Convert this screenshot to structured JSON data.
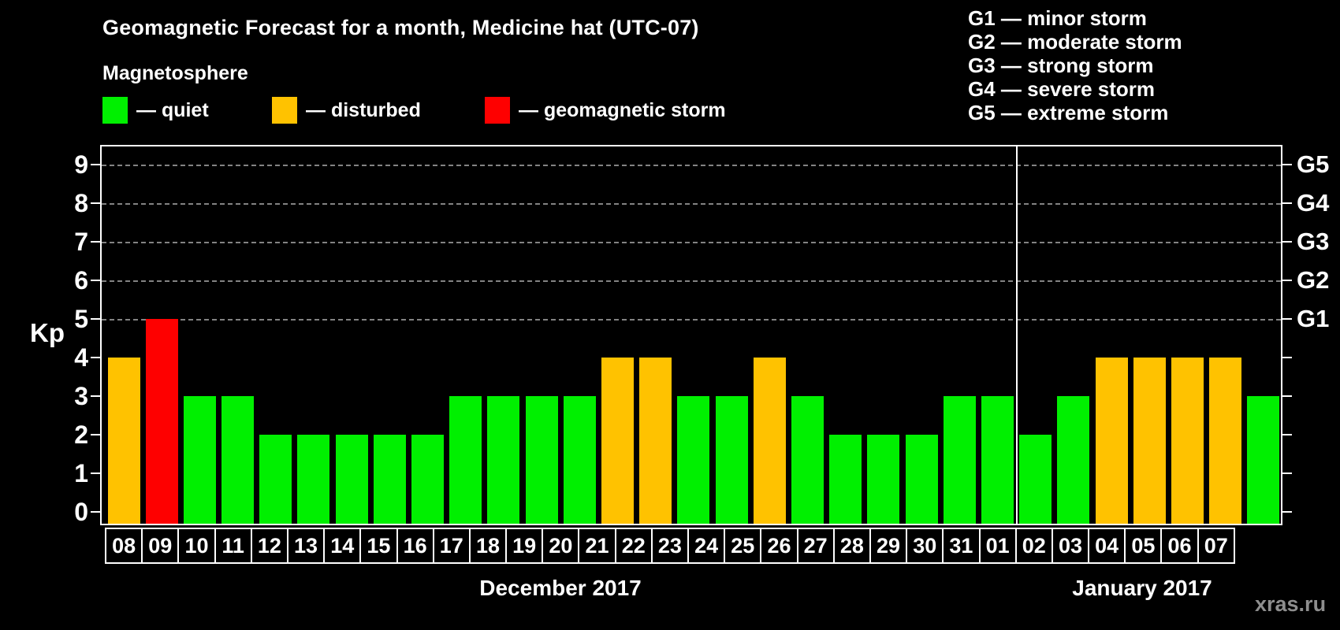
{
  "title": "Geomagnetic Forecast for a month, Medicine hat (UTC-07)",
  "legend": {
    "heading": "Magnetosphere",
    "items": [
      {
        "label": "— quiet",
        "status": "quiet"
      },
      {
        "label": "— disturbed",
        "status": "disturbed"
      },
      {
        "label": "— geomagnetic storm",
        "status": "storm"
      }
    ]
  },
  "storm_scale_lines": [
    "G1 — minor storm",
    "G2 — moderate storm",
    "G3 — strong storm",
    "G4 — severe storm",
    "G5 — extreme storm"
  ],
  "colors": {
    "quiet": "#00F000",
    "disturbed": "#FFC200",
    "storm": "#FE0000",
    "axis": "#FFFFFF",
    "grid": "#9A9A9A",
    "background": "#000000",
    "watermark_text": "#8E8E8E"
  },
  "axes": {
    "y_label": "Kp"
  },
  "watermark": "xras.ru",
  "chart_data": {
    "type": "bar",
    "title": "Geomagnetic Forecast for a month, Medicine hat (UTC-07)",
    "ylabel": "Kp",
    "ylim": [
      0,
      9.4
    ],
    "y_ticks": [
      0,
      1,
      2,
      3,
      4,
      5,
      6,
      7,
      8,
      9
    ],
    "grid_levels": [
      5,
      6,
      7,
      8,
      9
    ],
    "grid": "dashed horizontal at storm levels only",
    "legend_position": "top-left and top-right",
    "right_axis_labels": [
      {
        "kp": 5,
        "label": "G1"
      },
      {
        "kp": 6,
        "label": "G2"
      },
      {
        "kp": 7,
        "label": "G3"
      },
      {
        "kp": 8,
        "label": "G4"
      },
      {
        "kp": 9,
        "label": "G5"
      }
    ],
    "series": [
      {
        "name": "December 2017",
        "categories": [
          "08",
          "09",
          "10",
          "11",
          "12",
          "13",
          "14",
          "15",
          "16",
          "17",
          "18",
          "19",
          "20",
          "21",
          "22",
          "23",
          "24",
          "25",
          "26",
          "27",
          "28",
          "29",
          "30",
          "31"
        ],
        "values": [
          4,
          5,
          3,
          3,
          2,
          2,
          2,
          2,
          2,
          3,
          3,
          3,
          3,
          4,
          4,
          3,
          3,
          4,
          3,
          2,
          2,
          2,
          3,
          3
        ],
        "status": [
          "disturbed",
          "storm",
          "quiet",
          "quiet",
          "quiet",
          "quiet",
          "quiet",
          "quiet",
          "quiet",
          "quiet",
          "quiet",
          "quiet",
          "quiet",
          "disturbed",
          "disturbed",
          "quiet",
          "quiet",
          "disturbed",
          "quiet",
          "quiet",
          "quiet",
          "quiet",
          "quiet",
          "quiet"
        ]
      },
      {
        "name": "January 2017",
        "categories": [
          "01",
          "02",
          "03",
          "04",
          "05",
          "06",
          "07"
        ],
        "values": [
          2,
          3,
          4,
          4,
          4,
          4,
          3
        ],
        "status": [
          "quiet",
          "quiet",
          "disturbed",
          "disturbed",
          "disturbed",
          "disturbed",
          "quiet"
        ]
      }
    ]
  }
}
